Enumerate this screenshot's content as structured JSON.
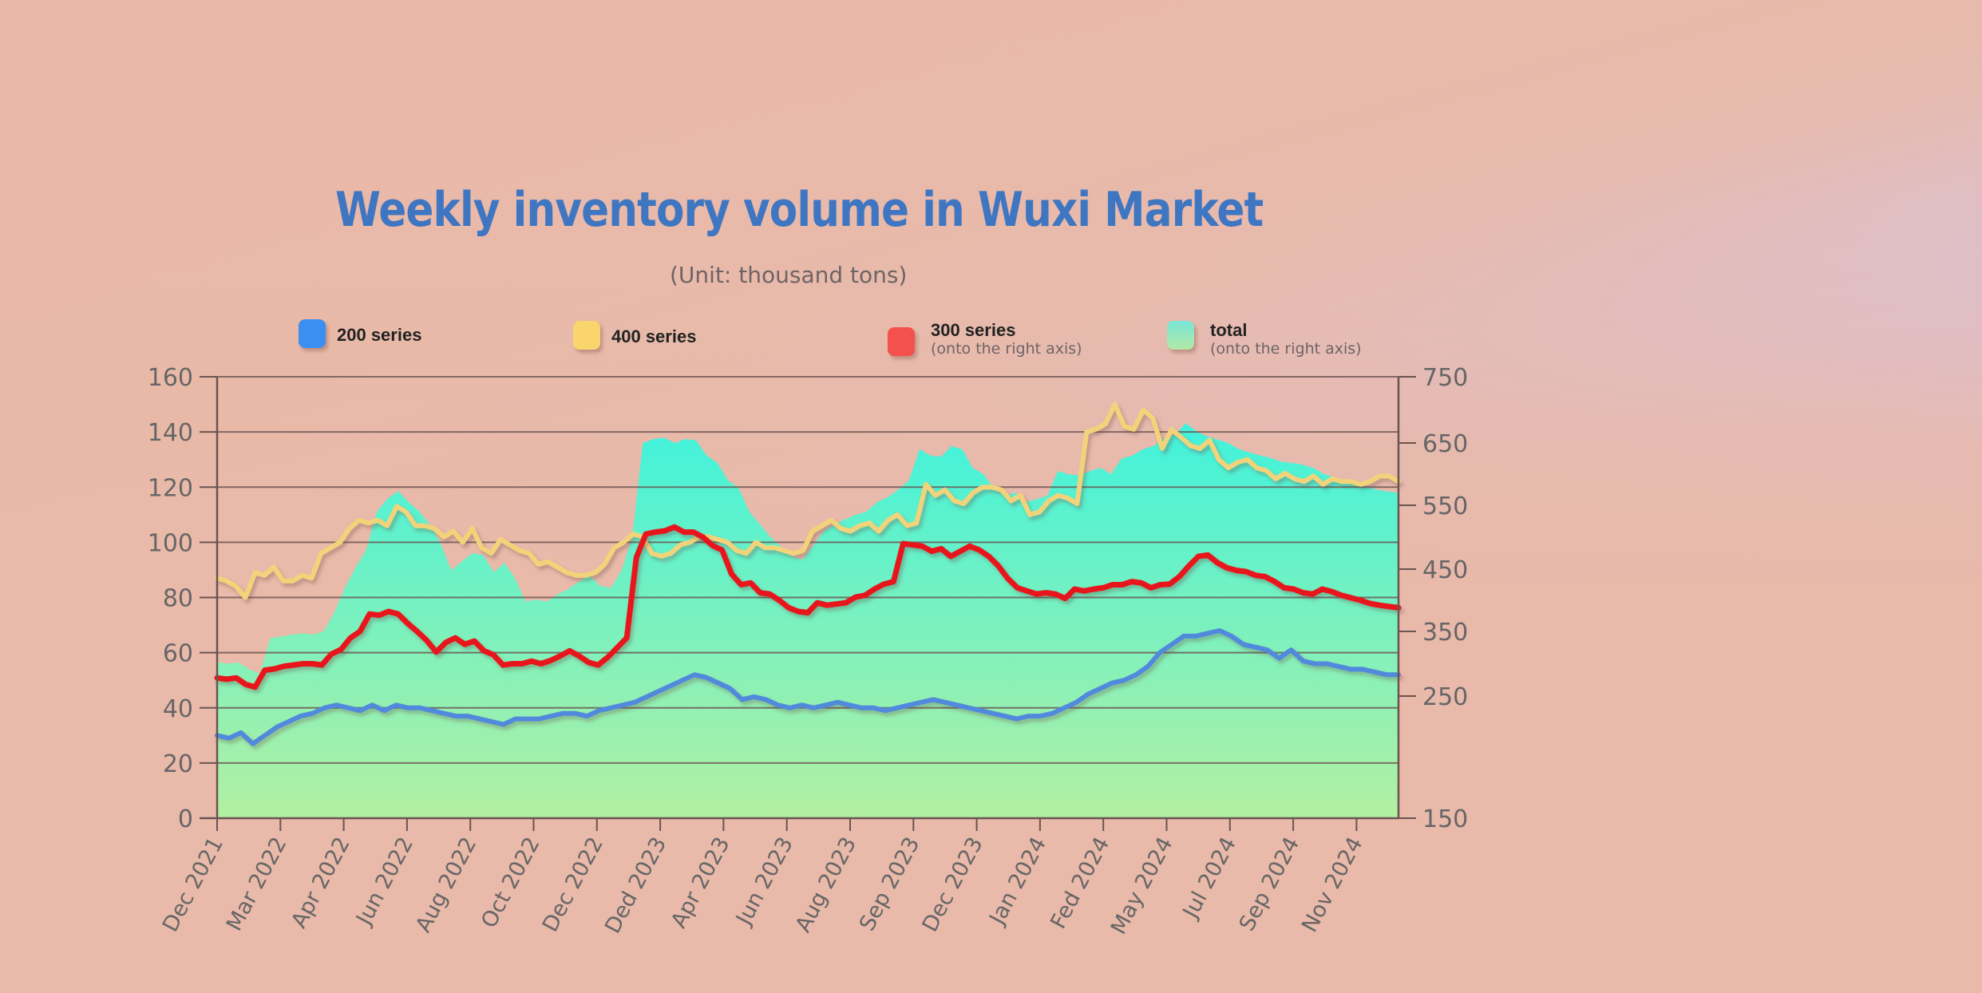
{
  "chart_data": {
    "type": "line",
    "title": "Weekly inventory volume in Wuxi Market",
    "subtitle": "(Unit: thousand tons)",
    "xlabel": "",
    "ylabel": "",
    "grid": true,
    "legend_placement": "top",
    "x_tick_labels": [
      "Dec 2021",
      "Mar 2022",
      "Apr 2022",
      "Jun 2022",
      "Aug 2022",
      "Oct 2022",
      "Dec 2022",
      "Ded 2023",
      "Apr 2023",
      "Jun 2023",
      "Aug 2023",
      "Sep 2023",
      "Dec 2023",
      "Jan 2024",
      "Fed 2024",
      "May 2024",
      "Jul 2024",
      "Sep 2024",
      "Nov 2024"
    ],
    "x_tick_step_points": 5,
    "left_axis": {
      "ylim": [
        0,
        160
      ],
      "ticks": [
        0,
        20,
        40,
        60,
        80,
        100,
        120,
        140,
        160
      ]
    },
    "right_axis": {
      "ylim": [
        150,
        750
      ],
      "ticks": [
        150,
        250,
        350,
        450,
        550,
        650,
        750
      ]
    },
    "series": [
      {
        "name": "total",
        "note": "(onto the right axis)",
        "axis": "right",
        "style": "area",
        "color": "#4ef0d6",
        "color_bottom": "#b3f0a2",
        "values": [
          303,
          300,
          302,
          292,
          285,
          340,
          342,
          345,
          347,
          345,
          350,
          380,
          420,
          452,
          480,
          540,
          560,
          573,
          555,
          540,
          520,
          490,
          448,
          462,
          475,
          472,
          445,
          460,
          435,
          398,
          401,
          398,
          410,
          418,
          430,
          440,
          423,
          420,
          448,
          500,
          650,
          656,
          658,
          650,
          656,
          654,
          630,
          618,
          590,
          578,
          540,
          520,
          500,
          485,
          470,
          465,
          487,
          510,
          520,
          528,
          535,
          540,
          555,
          563,
          575,
          590,
          640,
          630,
          628,
          645,
          640,
          610,
          600,
          577,
          565,
          570,
          555,
          560,
          565,
          605,
          600,
          598,
          605,
          610,
          600,
          625,
          630,
          640,
          645,
          658,
          662,
          680,
          668,
          660,
          655,
          650,
          640,
          635,
          630,
          626,
          620,
          618,
          615,
          610,
          600,
          595,
          590,
          585,
          580,
          575,
          572,
          570
        ]
      },
      {
        "name": "200 series",
        "axis": "left",
        "style": "line",
        "color": "#5189dc",
        "values": [
          30,
          29,
          31,
          27,
          30,
          33,
          35,
          37,
          38,
          40,
          41,
          40,
          39,
          41,
          39,
          41,
          40,
          40,
          39,
          38,
          37,
          37,
          36,
          35,
          34,
          36,
          36,
          36,
          37,
          38,
          38,
          37,
          39,
          40,
          41,
          42,
          44,
          46,
          48,
          50,
          52,
          51,
          49,
          47,
          43,
          44,
          43,
          41,
          40,
          41,
          40,
          41,
          42,
          41,
          40,
          40,
          39,
          40,
          41,
          42,
          43,
          42,
          41,
          40,
          39,
          38,
          37,
          36,
          37,
          37,
          38,
          40,
          42,
          45,
          47,
          49,
          50,
          52,
          55,
          60,
          63,
          66,
          66,
          67,
          68,
          66,
          63,
          62,
          61,
          58,
          61,
          57,
          56,
          56,
          55,
          54,
          54,
          53,
          52,
          52
        ]
      },
      {
        "name": "400 series",
        "axis": "left",
        "style": "line",
        "color": "#f3d37a",
        "values": [
          87,
          86,
          84,
          80,
          89,
          88,
          91,
          86,
          86,
          88,
          87,
          96,
          98,
          100,
          105,
          108,
          107,
          108,
          106,
          113,
          111,
          106,
          106,
          105,
          102,
          104,
          100,
          105,
          98,
          96,
          101,
          99,
          97,
          96,
          92,
          93,
          91,
          89,
          88,
          88,
          89,
          92,
          98,
          100,
          103,
          102,
          96,
          95,
          96,
          99,
          100,
          102,
          102,
          101,
          100,
          97,
          96,
          100,
          98,
          98,
          97,
          96,
          97,
          104,
          106,
          108,
          105,
          104,
          106,
          107,
          104,
          108,
          110,
          106,
          107,
          121,
          117,
          119,
          115,
          114,
          118,
          120,
          120,
          119,
          115,
          117,
          110,
          111,
          115,
          117,
          116,
          114,
          140,
          141,
          143,
          150,
          142,
          141,
          148,
          145,
          134,
          141,
          138,
          135,
          134,
          137,
          130,
          127,
          129,
          130,
          127,
          126,
          123,
          125,
          123,
          122,
          124,
          121,
          123,
          122,
          122,
          121,
          122,
          124,
          124,
          122
        ]
      },
      {
        "name": "300 series",
        "note": "(onto the right axis)",
        "axis": "right",
        "style": "line",
        "color": "#e8191c",
        "values": [
          278,
          276,
          278,
          268,
          264,
          290,
          292,
          296,
          298,
          300,
          300,
          298,
          315,
          322,
          340,
          350,
          378,
          376,
          382,
          378,
          363,
          350,
          336,
          318,
          333,
          340,
          330,
          335,
          320,
          314,
          298,
          300,
          300,
          304,
          300,
          305,
          312,
          320,
          312,
          302,
          298,
          310,
          325,
          340,
          468,
          505,
          508,
          510,
          516,
          508,
          508,
          500,
          487,
          480,
          442,
          425,
          428,
          412,
          410,
          400,
          388,
          382,
          380,
          396,
          392,
          394,
          396,
          405,
          408,
          418,
          426,
          430,
          490,
          488,
          486,
          478,
          482,
          470,
          478,
          486,
          480,
          470,
          455,
          435,
          420,
          415,
          410,
          412,
          410,
          403,
          418,
          415,
          418,
          420,
          425,
          425,
          430,
          428,
          420,
          425,
          426,
          438,
          455,
          470,
          472,
          460,
          452,
          448,
          446,
          440,
          438,
          430,
          420,
          418,
          412,
          410,
          418,
          414,
          408,
          404,
          400,
          395,
          392,
          390,
          388
        ]
      }
    ]
  },
  "legend": [
    {
      "label": "200 series",
      "note": ""
    },
    {
      "label": "400 series",
      "note": ""
    },
    {
      "label": "300 series",
      "note": "(onto the right axis)"
    },
    {
      "label": "total",
      "note": "(onto the right axis)"
    }
  ]
}
